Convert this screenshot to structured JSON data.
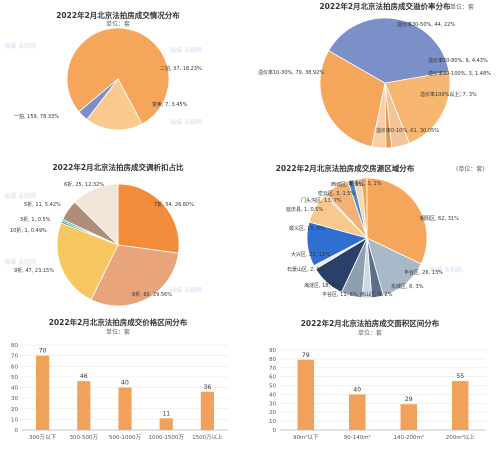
{
  "chart_data": [
    {
      "type": "pie",
      "title": "2022年2月北京法拍房成交情况分布",
      "unit": "单位：套",
      "categories": [
        "一拍",
        "二拍",
        "变卖"
      ],
      "values": [
        159,
        37,
        7
      ],
      "labels": [
        "一拍, 159, 78.33%",
        "二拍, 37, 18.23%",
        "变卖, 7, 3.45%"
      ],
      "colors": [
        "#f6a65b",
        "#f9c98e",
        "#7b8fc8"
      ]
    },
    {
      "type": "pie",
      "title": "2022年2月北京法拍房成交溢价率分布",
      "unit": "单位：套",
      "categories": [
        "溢价率30-50%",
        "溢价率50-80%",
        "溢价率80-100%",
        "溢价率100%以上",
        "溢价率0-10%",
        "溢价率10-30%"
      ],
      "values": [
        44,
        9,
        3,
        7,
        61,
        79
      ],
      "labels": [
        "溢价率30-50%, 44, 22%",
        "溢价率50-80%, 9, 4.43%",
        "溢价率80-100%, 3, 1.48%",
        "溢价率100%以上, 7, 3%",
        "溢价率0-10%, 61, 30.05%",
        "溢价率10-30%, 79, 38.92%"
      ],
      "colors": [
        "#f8b770",
        "#f3c49a",
        "#e79a55",
        "#f6d0a8",
        "#f6a65b",
        "#7b8fc8"
      ]
    },
    {
      "type": "pie",
      "title": "2022年2月北京法拍房成交调析扣占比",
      "unit": "",
      "categories": [
        "7折",
        "8折",
        "9折",
        "10折",
        "3折",
        "5折",
        "6折"
      ],
      "values": [
        54,
        60,
        47,
        1,
        1,
        11,
        25
      ],
      "labels": [
        "7折, 54, 26.60%",
        "8折, 60, 29.56%",
        "9折, 47, 23.15%",
        "10折, 1, 0.49%",
        "3折, 1, 0.5%",
        "5折, 11, 5.42%",
        "6折, 25, 12.32%"
      ],
      "colors": [
        "#f28c3a",
        "#e8a47a",
        "#f6c75e",
        "#3a8c6e",
        "#2fb5b0",
        "#b08d78",
        "#f2e6d8"
      ]
    },
    {
      "type": "pie",
      "title": "2022年2月北京法拍房成交房源区域分布",
      "unit": "(单位：套)",
      "categories": [
        "朝阳区",
        "丰台区",
        "东城区",
        "房山区",
        "平谷区",
        "海淀区",
        "石景山区",
        "大兴区",
        "顺义区",
        "延庆县",
        "门头沟区",
        "密云区",
        "西城区",
        "怀柔区"
      ],
      "values": [
        62,
        26,
        6,
        5,
        11,
        18,
        2,
        23,
        16,
        1,
        13,
        3,
        4,
        3
      ],
      "labels": [
        "朝阳区, 62, 31%",
        "丰台区, 26, 13%",
        "东城区, 6, 3%",
        "房山区, 5, 2%",
        "平谷区, 11, 6%",
        "海淀区, 18, 9%",
        "石景山区, 2, 1%",
        "大兴区, 23, 12%",
        "顺义区, 16, 8%",
        "延庆县, 1, 0.5%",
        "门头沟区, 13, 7%",
        "密云区, 3, 1.5%",
        "西城区, 4, 2%",
        "怀柔区, 3, 1%"
      ],
      "colors": [
        "#f6a65b",
        "#a7b9c9",
        "#5d6f86",
        "#cfd8e3",
        "#8e9fb2",
        "#2a3f6a",
        "#e9eef5",
        "#2f6fd1",
        "#f8c98e",
        "#b9c7dc",
        "#f2b176",
        "#4f86c6",
        "#f3d8b6",
        "#f6a65b"
      ]
    },
    {
      "type": "bar",
      "title": "2022年2月北京法拍房成交价格区间分布",
      "unit": "单位：套",
      "categories": [
        "300万以下",
        "300-500万",
        "500-1000万",
        "1000-1500万",
        "1500万以上"
      ],
      "values": [
        70,
        46,
        40,
        11,
        36
      ],
      "yticks": [
        "0",
        "10",
        "20",
        "30",
        "40",
        "50",
        "60",
        "70",
        "80"
      ],
      "ylim": [
        0,
        80
      ],
      "color": "#f0a25a"
    },
    {
      "type": "bar",
      "title": "2022年2月北京法拍房成交面积区间分布",
      "unit": "单位：套",
      "categories": [
        "90m²以下",
        "90-140m²",
        "140-200m²",
        "200m²以上"
      ],
      "values": [
        79,
        40,
        29,
        55
      ],
      "yticks": [
        "0",
        "10",
        "20",
        "30",
        "40",
        "50",
        "60",
        "70",
        "80",
        "90"
      ],
      "ylim": [
        0,
        90
      ],
      "color": "#f0a25a"
    }
  ],
  "watermark_text": "瑞城 法拍网"
}
